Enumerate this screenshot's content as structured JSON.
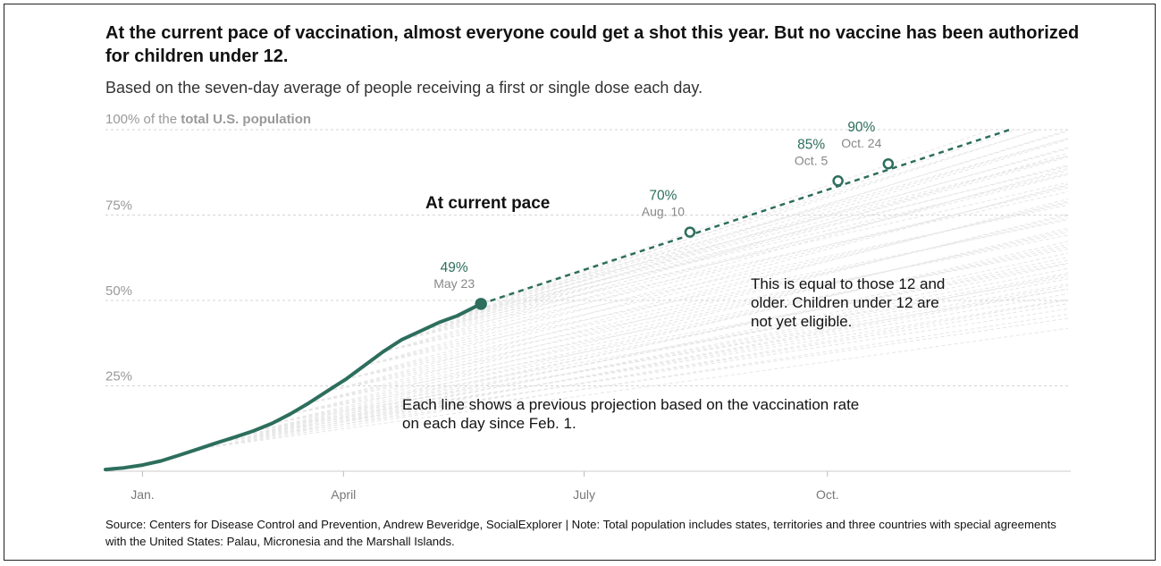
{
  "title": "At the current pace of vaccination, almost everyone could get a shot this year. But no vaccine has been authorized for children under 12.",
  "subtitle": "Based on the seven-day average of people receiving a first or single dose each day.",
  "source": "Source: Centers for Disease Control and Prevention, Andrew Beveridge, SocialExplorer | Note: Total population includes states, territories and three countries with special agreements with the United States: Palau, Micronesia and the Marshall Islands.",
  "colors": {
    "accent": "#2d6e5d",
    "projection_gray": "#e6e6e6",
    "gridline": "#d4d4d4",
    "axis_text": "#999999"
  },
  "chart_data": {
    "type": "line",
    "xlim": [
      "2021-01-01",
      "2022-01-01"
    ],
    "ylim": [
      0,
      100
    ],
    "y_unit": "% of total U.S. population",
    "ylabel_prefix": "100% of the ",
    "ylabel_bold": "total U.S. population",
    "yticks": [
      {
        "value": 75,
        "label": "75%"
      },
      {
        "value": 50,
        "label": "50%"
      },
      {
        "value": 25,
        "label": "25%"
      }
    ],
    "xticks": [
      {
        "date": "2021-01-15",
        "label": "Jan."
      },
      {
        "date": "2021-04-01",
        "label": "April"
      },
      {
        "date": "2021-07-01",
        "label": "July"
      },
      {
        "date": "2021-10-01",
        "label": "Oct."
      }
    ],
    "grid": true,
    "series": [
      {
        "style": "actual",
        "points": [
          [
            "2021-01-01",
            0.5
          ],
          [
            "2021-01-08",
            1.0
          ],
          [
            "2021-01-15",
            1.8
          ],
          [
            "2021-01-22",
            3.0
          ],
          [
            "2021-01-29",
            4.7
          ],
          [
            "2021-02-05",
            6.5
          ],
          [
            "2021-02-12",
            8.3
          ],
          [
            "2021-02-19",
            10.0
          ],
          [
            "2021-02-26",
            11.8
          ],
          [
            "2021-03-05",
            14.0
          ],
          [
            "2021-03-12",
            16.8
          ],
          [
            "2021-03-19",
            20.0
          ],
          [
            "2021-03-26",
            23.5
          ],
          [
            "2021-04-02",
            27.0
          ],
          [
            "2021-04-09",
            31.0
          ],
          [
            "2021-04-16",
            35.0
          ],
          [
            "2021-04-23",
            38.5
          ],
          [
            "2021-04-30",
            41.0
          ],
          [
            "2021-05-07",
            43.5
          ],
          [
            "2021-05-14",
            45.5
          ],
          [
            "2021-05-23",
            49.0
          ]
        ]
      },
      {
        "style": "projection",
        "points": [
          [
            "2021-05-23",
            49.0
          ],
          [
            "2021-12-31",
            100.0
          ]
        ]
      }
    ],
    "milestones": [
      {
        "pct_label": "49%",
        "date_label": "May 23",
        "date": "2021-05-23",
        "value": 49,
        "filled": true
      },
      {
        "pct_label": "70%",
        "date_label": "Aug. 10",
        "date": "2021-08-10",
        "value": 70,
        "filled": false
      },
      {
        "pct_label": "85%",
        "date_label": "Oct. 5",
        "date": "2021-10-05",
        "value": 85,
        "filled": false
      },
      {
        "pct_label": "90%",
        "date_label": "Oct. 24",
        "date": "2021-10-24",
        "value": 90,
        "filled": false
      }
    ],
    "annotations": {
      "current_pace": "At current pace",
      "eligibility": [
        "This is equal to those 12 and",
        "older. Children under 12 are",
        "not yet eligible."
      ],
      "previous_projections": [
        "Each line shows a previous projection based on the vaccination rate",
        "on each day since Feb. 1."
      ]
    }
  }
}
